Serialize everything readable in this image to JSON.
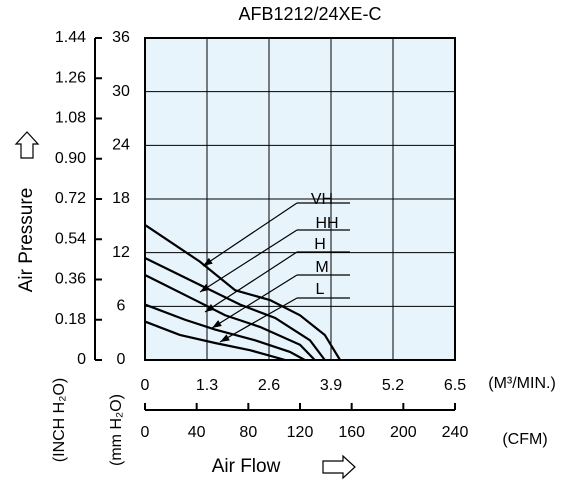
{
  "chart_data": {
    "type": "line",
    "title": "AFB1212/24XE-C",
    "y_label": "Air Pressure",
    "y_unit": "(mm H₂O)",
    "y2_unit": "(INCH H₂O)",
    "x_label": "Air Flow",
    "x_unit": "(M³/MIN.)",
    "x2_unit": "(CFM)",
    "xlim": [
      0,
      6.5
    ],
    "xticks": [
      0,
      1.3,
      2.6,
      3.9,
      5.2,
      6.5
    ],
    "x2lim": [
      0,
      240
    ],
    "x2ticks": [
      0,
      40,
      80,
      120,
      160,
      200,
      240
    ],
    "ylim": [
      0,
      36
    ],
    "yticks": [
      0,
      6,
      12,
      18,
      24,
      30,
      36
    ],
    "y2lim": [
      0,
      1.44
    ],
    "y2ticks": [
      0,
      0.18,
      0.36,
      0.54,
      0.72,
      {
        "value": 0.9,
        "label": "0.90"
      },
      1.08,
      1.26,
      1.44
    ],
    "grid": true,
    "color": "#000000",
    "background": "#e8f4fc",
    "series": [
      {
        "name": "VH",
        "x": [
          0,
          1.15,
          1.89,
          2.62,
          3.25,
          3.77,
          4.09
        ],
        "values": [
          15.1,
          11.0,
          7.8,
          6.7,
          5.0,
          2.8,
          0
        ]
      },
      {
        "name": "HH",
        "x": [
          0,
          1.15,
          1.99,
          2.73,
          3.46,
          3.77
        ],
        "values": [
          11.4,
          8.4,
          6.2,
          4.7,
          2.2,
          0
        ]
      },
      {
        "name": "H",
        "x": [
          0,
          1.05,
          1.68,
          2.41,
          3.25,
          3.56
        ],
        "values": [
          9.5,
          6.7,
          5.0,
          3.7,
          1.7,
          0
        ]
      },
      {
        "name": "M",
        "x": [
          0,
          0.84,
          1.47,
          2.31,
          3.04,
          3.35
        ],
        "values": [
          6.2,
          4.5,
          3.4,
          2.2,
          0.9,
          0
        ]
      },
      {
        "name": "L",
        "x": [
          0,
          0.73,
          1.47,
          2.2,
          2.94
        ],
        "values": [
          4.3,
          2.8,
          1.9,
          1.1,
          0
        ]
      }
    ]
  }
}
